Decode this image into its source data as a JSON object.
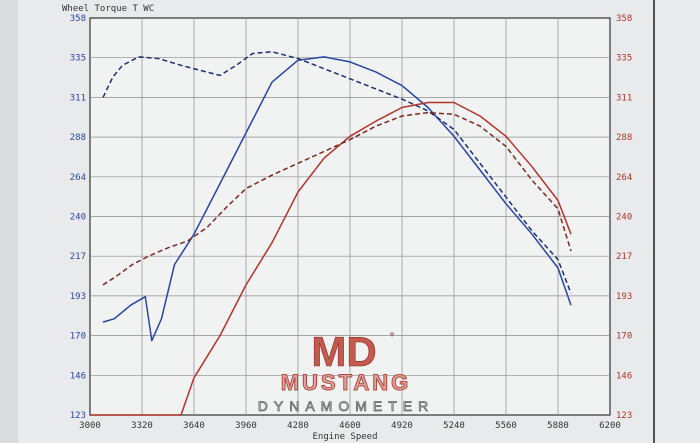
{
  "chart_data": {
    "type": "line",
    "title": "Wheel Torque T WC",
    "xlabel": "Engine Speed",
    "xlim": [
      3000,
      6200
    ],
    "ylim": [
      123,
      358
    ],
    "x_ticks": [
      "3000",
      "3320",
      "3640",
      "3960",
      "4280",
      "4600",
      "4920",
      "5240",
      "5560",
      "5880",
      "6200"
    ],
    "y_ticks_left": [
      "123",
      "146",
      "170",
      "193",
      "217",
      "240",
      "264",
      "288",
      "311",
      "335",
      "358"
    ],
    "y_ticks_right": [
      "123",
      "146",
      "170",
      "193",
      "217",
      "240",
      "264",
      "288",
      "311",
      "335",
      "358"
    ],
    "grid": true,
    "series": [
      {
        "color": "#2a45a0",
        "style": "solid",
        "side": "left",
        "points": [
          [
            3080,
            178
          ],
          [
            3150,
            180
          ],
          [
            3250,
            188
          ],
          [
            3340,
            193
          ],
          [
            3380,
            167
          ],
          [
            3440,
            180
          ],
          [
            3520,
            212
          ],
          [
            3640,
            230
          ],
          [
            3800,
            260
          ],
          [
            3960,
            290
          ],
          [
            4120,
            320
          ],
          [
            4280,
            333
          ],
          [
            4440,
            335
          ],
          [
            4600,
            332
          ],
          [
            4760,
            326
          ],
          [
            4920,
            318
          ],
          [
            5080,
            305
          ],
          [
            5240,
            288
          ],
          [
            5400,
            268
          ],
          [
            5560,
            248
          ],
          [
            5720,
            230
          ],
          [
            5880,
            210
          ],
          [
            5960,
            188
          ]
        ]
      },
      {
        "color": "#1f2f6b",
        "style": "dashed",
        "side": "left",
        "points": [
          [
            3080,
            311
          ],
          [
            3140,
            323
          ],
          [
            3200,
            330
          ],
          [
            3300,
            335
          ],
          [
            3420,
            334
          ],
          [
            3560,
            330
          ],
          [
            3680,
            327
          ],
          [
            3800,
            324
          ],
          [
            3900,
            330
          ],
          [
            4000,
            337
          ],
          [
            4120,
            338
          ],
          [
            4280,
            334
          ],
          [
            4440,
            328
          ],
          [
            4600,
            322
          ],
          [
            4760,
            316
          ],
          [
            4920,
            310
          ],
          [
            5080,
            303
          ],
          [
            5240,
            292
          ],
          [
            5400,
            272
          ],
          [
            5560,
            252
          ],
          [
            5720,
            232
          ],
          [
            5880,
            215
          ],
          [
            5960,
            195
          ]
        ]
      },
      {
        "color": "#b0342c",
        "style": "solid",
        "side": "right",
        "points": [
          [
            3000,
            123
          ],
          [
            3200,
            123
          ],
          [
            3400,
            123
          ],
          [
            3560,
            123
          ],
          [
            3640,
            145
          ],
          [
            3800,
            170
          ],
          [
            3960,
            200
          ],
          [
            4120,
            225
          ],
          [
            4280,
            255
          ],
          [
            4440,
            275
          ],
          [
            4600,
            288
          ],
          [
            4760,
            297
          ],
          [
            4920,
            305
          ],
          [
            5080,
            308
          ],
          [
            5240,
            308
          ],
          [
            5400,
            300
          ],
          [
            5560,
            288
          ],
          [
            5720,
            270
          ],
          [
            5880,
            250
          ],
          [
            5960,
            230
          ]
        ]
      },
      {
        "color": "#7a2a22",
        "style": "dashed",
        "side": "right",
        "points": [
          [
            3080,
            200
          ],
          [
            3160,
            205
          ],
          [
            3260,
            212
          ],
          [
            3360,
            217
          ],
          [
            3480,
            222
          ],
          [
            3600,
            226
          ],
          [
            3720,
            234
          ],
          [
            3840,
            246
          ],
          [
            3960,
            257
          ],
          [
            4120,
            265
          ],
          [
            4280,
            272
          ],
          [
            4440,
            279
          ],
          [
            4600,
            286
          ],
          [
            4760,
            294
          ],
          [
            4920,
            300
          ],
          [
            5080,
            302
          ],
          [
            5240,
            301
          ],
          [
            5400,
            294
          ],
          [
            5560,
            282
          ],
          [
            5720,
            262
          ],
          [
            5880,
            245
          ],
          [
            5960,
            220
          ]
        ]
      }
    ]
  },
  "logo": {
    "mark": "MD",
    "name": "MUSTANG",
    "sub": "DYNAMOMETER",
    "registered": "®"
  }
}
